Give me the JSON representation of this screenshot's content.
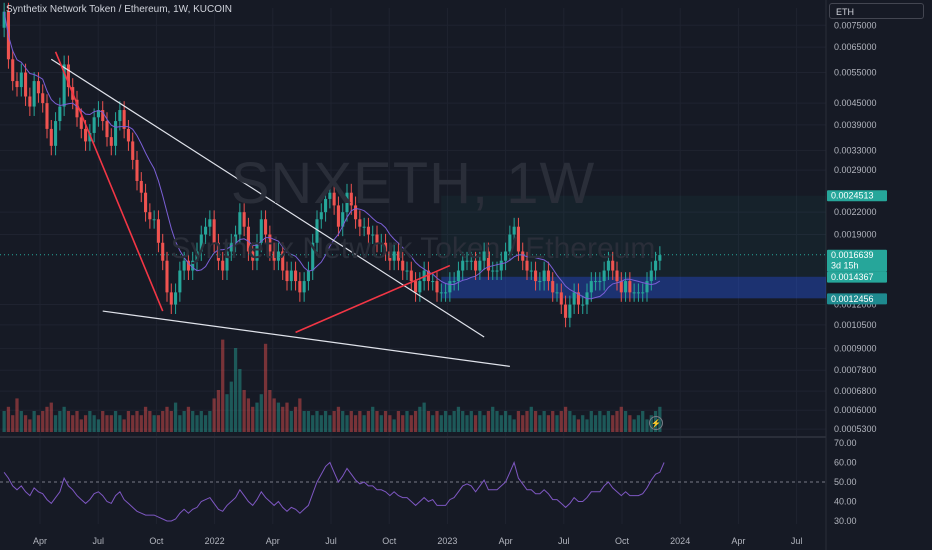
{
  "header": {
    "title": "Synthetix Network Token / Ethereum, 1W, KUCOIN",
    "currency": "ETH"
  },
  "watermark": {
    "symbol": "SNXETH, 1W",
    "description": "Synthetix Network Token / Ethereum"
  },
  "colors": {
    "background": "#161a25",
    "up": "#26a69a",
    "down": "#ef5350",
    "trendline": "#e0e3eb",
    "red_trendline": "#f23645",
    "ma": "#7b5fd6",
    "rsi": "#7e57c2",
    "green_badge": "#26a69a",
    "blue_badge": "#2962ff",
    "teal_badge": "#1e8a8f"
  },
  "icons": {
    "event": "lightning-icon"
  },
  "chart_data": [
    {
      "type": "candlestick",
      "scale": "log",
      "y_ticks": [
        "0.0075000",
        "0.0065000",
        "0.0055000",
        "0.0045000",
        "0.0039000",
        "0.0033000",
        "0.0029000",
        "0.0022000",
        "0.0019000",
        "0.0012000",
        "0.0010500",
        "0.0009000",
        "0.0007800",
        "0.0006800",
        "0.0006000",
        "0.0005300"
      ],
      "x_ticks": [
        "Apr",
        "Jul",
        "Oct",
        "2022",
        "Apr",
        "Jul",
        "Oct",
        "2023",
        "Apr",
        "Jul",
        "Oct",
        "2024",
        "Apr",
        "Jul"
      ],
      "ylim": [
        0.00052,
        0.0084
      ],
      "price_labels": [
        {
          "value": 0.0024513,
          "text": "0.0024513",
          "kind": "green"
        },
        {
          "value": 0.0016639,
          "text": "0.0016639",
          "sub": "3d 15h",
          "kind": "last"
        },
        {
          "value": 0.0014367,
          "text": "0.0014367",
          "kind": "green"
        },
        {
          "value": 0.0012456,
          "text": "0.0012456",
          "kind": "teal"
        }
      ],
      "last_price": 0.0016639,
      "candles_close": [
        0.0082,
        0.006,
        0.0052,
        0.005,
        0.0055,
        0.0047,
        0.0044,
        0.0052,
        0.0048,
        0.0045,
        0.0038,
        0.0034,
        0.004,
        0.0044,
        0.0058,
        0.005,
        0.0046,
        0.0041,
        0.0038,
        0.0035,
        0.0037,
        0.0041,
        0.0043,
        0.004,
        0.0036,
        0.0034,
        0.004,
        0.0043,
        0.0038,
        0.0035,
        0.0031,
        0.0027,
        0.0025,
        0.0022,
        0.0021,
        0.0021,
        0.0018,
        0.0016,
        0.0013,
        0.0012,
        0.0013,
        0.0015,
        0.0016,
        0.0015,
        0.0016,
        0.0017,
        0.0019,
        0.002,
        0.0021,
        0.0018,
        0.0016,
        0.0015,
        0.0017,
        0.0018,
        0.0019,
        0.0022,
        0.002,
        0.0017,
        0.0016,
        0.0018,
        0.0021,
        0.0019,
        0.0017,
        0.0016,
        0.0017,
        0.0015,
        0.0014,
        0.0015,
        0.0014,
        0.0013,
        0.0014,
        0.0015,
        0.0018,
        0.0021,
        0.0022,
        0.0024,
        0.0025,
        0.0023,
        0.002,
        0.0022,
        0.0025,
        0.0023,
        0.0021,
        0.002,
        0.002,
        0.0019,
        0.0019,
        0.0018,
        0.0018,
        0.0017,
        0.0016,
        0.0017,
        0.0016,
        0.0015,
        0.0015,
        0.0014,
        0.0013,
        0.0014,
        0.0015,
        0.0014,
        0.0014,
        0.0013,
        0.0013,
        0.0013,
        0.0014,
        0.0014,
        0.0015,
        0.0016,
        0.0016,
        0.0016,
        0.0015,
        0.0016,
        0.0017,
        0.0015,
        0.0015,
        0.0015,
        0.0016,
        0.0017,
        0.0019,
        0.002,
        0.0017,
        0.0016,
        0.0015,
        0.0015,
        0.0014,
        0.0014,
        0.0015,
        0.0014,
        0.0013,
        0.0013,
        0.0012,
        0.0011,
        0.0012,
        0.0013,
        0.0012,
        0.0012,
        0.0013,
        0.0014,
        0.0014,
        0.0014,
        0.0015,
        0.0016,
        0.0015,
        0.0014,
        0.0013,
        0.0014,
        0.0013,
        0.0013,
        0.0013,
        0.0013,
        0.0014,
        0.0015,
        0.0016,
        0.00166
      ],
      "volume": [
        0.05,
        0.06,
        0.04,
        0.08,
        0.05,
        0.04,
        0.03,
        0.05,
        0.04,
        0.05,
        0.06,
        0.07,
        0.04,
        0.05,
        0.06,
        0.05,
        0.04,
        0.05,
        0.03,
        0.04,
        0.05,
        0.04,
        0.03,
        0.05,
        0.04,
        0.04,
        0.05,
        0.04,
        0.03,
        0.05,
        0.04,
        0.05,
        0.04,
        0.06,
        0.05,
        0.04,
        0.04,
        0.05,
        0.06,
        0.05,
        0.07,
        0.04,
        0.05,
        0.06,
        0.05,
        0.04,
        0.05,
        0.04,
        0.05,
        0.08,
        0.1,
        0.22,
        0.09,
        0.12,
        0.2,
        0.15,
        0.1,
        0.08,
        0.06,
        0.07,
        0.09,
        0.21,
        0.1,
        0.08,
        0.07,
        0.06,
        0.07,
        0.05,
        0.06,
        0.08,
        0.05,
        0.05,
        0.04,
        0.05,
        0.04,
        0.05,
        0.04,
        0.05,
        0.06,
        0.05,
        0.04,
        0.05,
        0.04,
        0.05,
        0.04,
        0.05,
        0.06,
        0.05,
        0.04,
        0.05,
        0.04,
        0.03,
        0.05,
        0.04,
        0.05,
        0.04,
        0.05,
        0.06,
        0.07,
        0.05,
        0.04,
        0.05,
        0.04,
        0.05,
        0.04,
        0.05,
        0.06,
        0.05,
        0.04,
        0.05,
        0.04,
        0.05,
        0.04,
        0.05,
        0.06,
        0.05,
        0.04,
        0.05,
        0.04,
        0.03,
        0.05,
        0.04,
        0.05,
        0.06,
        0.05,
        0.04,
        0.05,
        0.04,
        0.05,
        0.04,
        0.05,
        0.06,
        0.05,
        0.04,
        0.03,
        0.04,
        0.03,
        0.05,
        0.04,
        0.05,
        0.04,
        0.05,
        0.04,
        0.05,
        0.06,
        0.05,
        0.04,
        0.03,
        0.04,
        0.05,
        0.03,
        0.04,
        0.05,
        0.06
      ],
      "trendlines": [
        {
          "from": [
            11,
            0.006
          ],
          "to": [
            112,
            0.00097
          ],
          "color": "white"
        },
        {
          "from": [
            23,
            0.00115
          ],
          "to": [
            118,
            0.0008
          ],
          "color": "white"
        },
        {
          "from": [
            12,
            0.0063
          ],
          "to": [
            37,
            0.00115
          ],
          "color": "red"
        },
        {
          "from": [
            68,
            0.001
          ],
          "to": [
            104,
            0.00155
          ],
          "color": "red"
        }
      ],
      "zone": {
        "x_start": 95,
        "x_end": 119,
        "from": 0.00125,
        "to": 0.00144
      }
    },
    {
      "type": "line",
      "ylim": [
        30,
        70
      ],
      "y_ticks": [
        "70.00",
        "60.00",
        "50.00",
        "40.00",
        "30.00"
      ],
      "reference": 50,
      "values": [
        55,
        52,
        48,
        46,
        48,
        45,
        43,
        47,
        45,
        44,
        41,
        39,
        42,
        45,
        52,
        48,
        46,
        43,
        41,
        39,
        41,
        44,
        45,
        43,
        40,
        39,
        43,
        45,
        41,
        39,
        37,
        35,
        34,
        33,
        33,
        33,
        32,
        31,
        30,
        30,
        31,
        34,
        36,
        34,
        36,
        37,
        40,
        41,
        42,
        39,
        36,
        35,
        38,
        40,
        42,
        46,
        43,
        40,
        38,
        41,
        45,
        42,
        40,
        38,
        40,
        37,
        35,
        37,
        36,
        34,
        36,
        38,
        44,
        50,
        54,
        58,
        60,
        55,
        50,
        53,
        57,
        54,
        51,
        49,
        50,
        48,
        48,
        46,
        46,
        45,
        43,
        45,
        43,
        42,
        42,
        40,
        38,
        40,
        42,
        40,
        41,
        38,
        38,
        38,
        41,
        42,
        45,
        48,
        49,
        48,
        45,
        48,
        51,
        46,
        46,
        46,
        48,
        50,
        55,
        60,
        52,
        49,
        46,
        46,
        44,
        44,
        46,
        44,
        41,
        41,
        39,
        37,
        39,
        42,
        40,
        40,
        42,
        45,
        45,
        45,
        48,
        50,
        47,
        45,
        43,
        45,
        43,
        43,
        43,
        44,
        47,
        51,
        54,
        55,
        60
      ]
    }
  ]
}
